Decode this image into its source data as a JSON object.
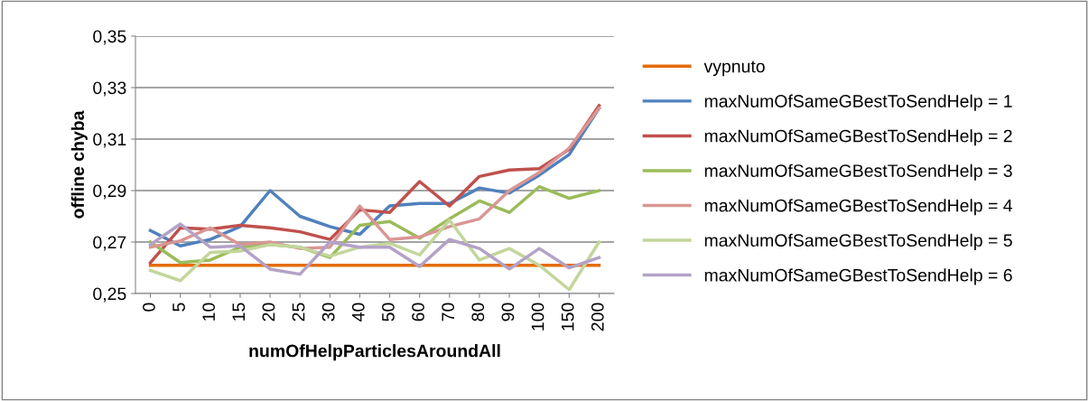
{
  "chart_data": {
    "type": "line",
    "xlabel": "numOfHelpParticlesAroundAll",
    "ylabel": "offline chyba",
    "categories": [
      "0",
      "5",
      "10",
      "15",
      "20",
      "25",
      "30",
      "40",
      "50",
      "60",
      "70",
      "80",
      "90",
      "100",
      "150",
      "200"
    ],
    "series": [
      {
        "name": "vypnuto",
        "color": "#e46c0a",
        "values": [
          0.261,
          0.261,
          0.261,
          0.261,
          0.261,
          0.261,
          0.261,
          0.261,
          0.261,
          0.261,
          0.261,
          0.261,
          0.261,
          0.261,
          0.261,
          0.261
        ]
      },
      {
        "name": "maxNumOfSameGBestToSendHelp = 1",
        "color": "#4f81bd",
        "values": [
          0.2745,
          0.2685,
          0.271,
          0.276,
          0.29,
          0.28,
          0.276,
          0.273,
          0.284,
          0.285,
          0.285,
          0.291,
          0.289,
          0.296,
          0.304,
          0.322
        ]
      },
      {
        "name": "maxNumOfSameGBestToSendHelp = 2",
        "color": "#c0504d",
        "values": [
          0.262,
          0.2755,
          0.275,
          0.2765,
          0.2755,
          0.274,
          0.271,
          0.2825,
          0.2815,
          0.2935,
          0.284,
          0.2955,
          0.298,
          0.2985,
          0.306,
          0.323
        ]
      },
      {
        "name": "maxNumOfSameGBestToSendHelp = 3",
        "color": "#9bbb59",
        "values": [
          0.27,
          0.262,
          0.263,
          0.268,
          0.269,
          0.268,
          0.264,
          0.2765,
          0.278,
          0.2715,
          0.279,
          0.286,
          0.2815,
          0.2915,
          0.287,
          0.29
        ]
      },
      {
        "name": "maxNumOfSameGBestToSendHelp = 4",
        "color": "#d99694",
        "values": [
          0.268,
          0.2705,
          0.2755,
          0.269,
          0.27,
          0.2675,
          0.268,
          0.284,
          0.271,
          0.272,
          0.276,
          0.279,
          0.29,
          0.297,
          0.3065,
          0.322
        ]
      },
      {
        "name": "maxNumOfSameGBestToSendHelp = 5",
        "color": "#c3d69b",
        "values": [
          0.259,
          0.255,
          0.266,
          0.2665,
          0.269,
          0.268,
          0.2645,
          0.268,
          0.2695,
          0.265,
          0.2785,
          0.263,
          0.2675,
          0.261,
          0.2515,
          0.27
        ]
      },
      {
        "name": "maxNumOfSameGBestToSendHelp = 6",
        "color": "#b3a2c7",
        "values": [
          0.269,
          0.277,
          0.268,
          0.2685,
          0.2595,
          0.2575,
          0.27,
          0.268,
          0.268,
          0.2605,
          0.271,
          0.2675,
          0.2595,
          0.2675,
          0.26,
          0.264
        ]
      }
    ],
    "ylim": [
      0.25,
      0.35
    ],
    "yticks": [
      {
        "value": 0.25,
        "label": "0,25"
      },
      {
        "value": 0.27,
        "label": "0,27"
      },
      {
        "value": 0.29,
        "label": "0,29"
      },
      {
        "value": 0.31,
        "label": "0,31"
      },
      {
        "value": 0.33,
        "label": "0,33"
      },
      {
        "value": 0.35,
        "label": "0,35"
      }
    ],
    "grid": "y",
    "legend": "right",
    "marker": "none",
    "line_style": "solid"
  }
}
